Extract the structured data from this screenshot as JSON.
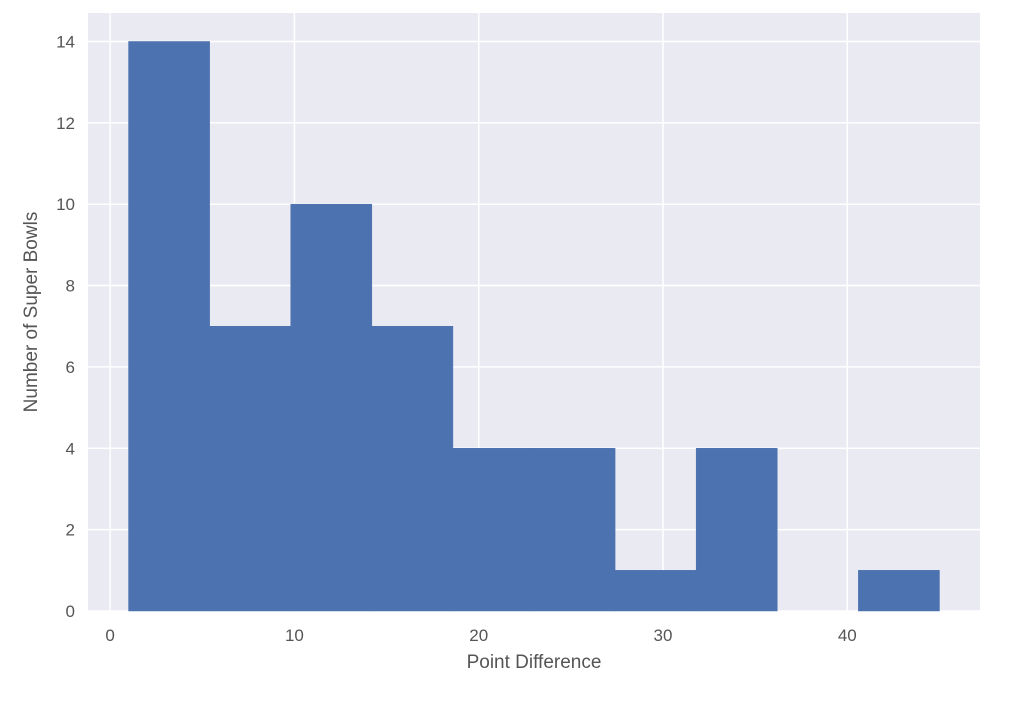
{
  "chart_data": {
    "type": "bar",
    "title": "",
    "xlabel": "Point Difference",
    "ylabel": "Number of Super Bowls",
    "xlim": [
      -1.2,
      47.2
    ],
    "ylim": [
      0,
      14.7
    ],
    "xticks": [
      0,
      10,
      20,
      30,
      40
    ],
    "yticks": [
      0,
      2,
      4,
      6,
      8,
      10,
      12,
      14
    ],
    "grid": true,
    "colors": {
      "bar": "#4C72B0",
      "background": "#EAEAF2",
      "grid": "#FFFFFF"
    },
    "bins": [
      {
        "x0": 1.0,
        "x1": 5.4,
        "count": 14
      },
      {
        "x0": 5.4,
        "x1": 9.8,
        "count": 7
      },
      {
        "x0": 9.8,
        "x1": 14.2,
        "count": 10
      },
      {
        "x0": 14.2,
        "x1": 18.6,
        "count": 7
      },
      {
        "x0": 18.6,
        "x1": 23.0,
        "count": 4
      },
      {
        "x0": 23.0,
        "x1": 27.4,
        "count": 4
      },
      {
        "x0": 27.4,
        "x1": 31.8,
        "count": 1
      },
      {
        "x0": 31.8,
        "x1": 36.2,
        "count": 4
      },
      {
        "x0": 36.2,
        "x1": 40.6,
        "count": 0
      },
      {
        "x0": 40.6,
        "x1": 45.0,
        "count": 1
      }
    ]
  }
}
